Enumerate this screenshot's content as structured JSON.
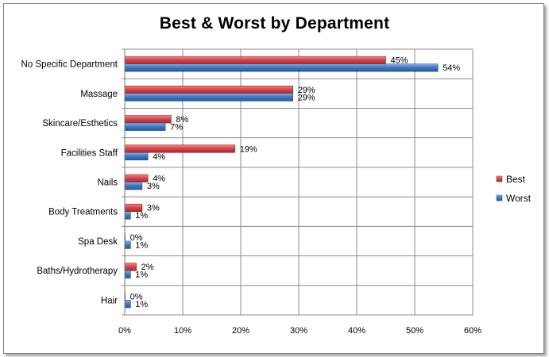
{
  "chart_data": {
    "type": "bar",
    "orientation": "horizontal",
    "title": "Best & Worst by Department",
    "categories": [
      "No Specific Department",
      "Massage",
      "Skincare/Esthetics",
      "Facilities Staff",
      "Nails",
      "Body Treatments",
      "Spa Desk",
      "Baths/Hydrotherapy",
      "Hair"
    ],
    "series": [
      {
        "name": "Best",
        "color": "#d9464a",
        "values": [
          45,
          29,
          8,
          19,
          4,
          3,
          0,
          2,
          0
        ]
      },
      {
        "name": "Worst",
        "color": "#3f78c4",
        "values": [
          54,
          29,
          7,
          4,
          3,
          1,
          1,
          1,
          1
        ]
      }
    ],
    "x_ticks": [
      "0%",
      "10%",
      "20%",
      "30%",
      "40%",
      "50%",
      "60%"
    ],
    "xlim": [
      0,
      60
    ],
    "value_suffix": "%",
    "grid": true,
    "legend": "right"
  }
}
